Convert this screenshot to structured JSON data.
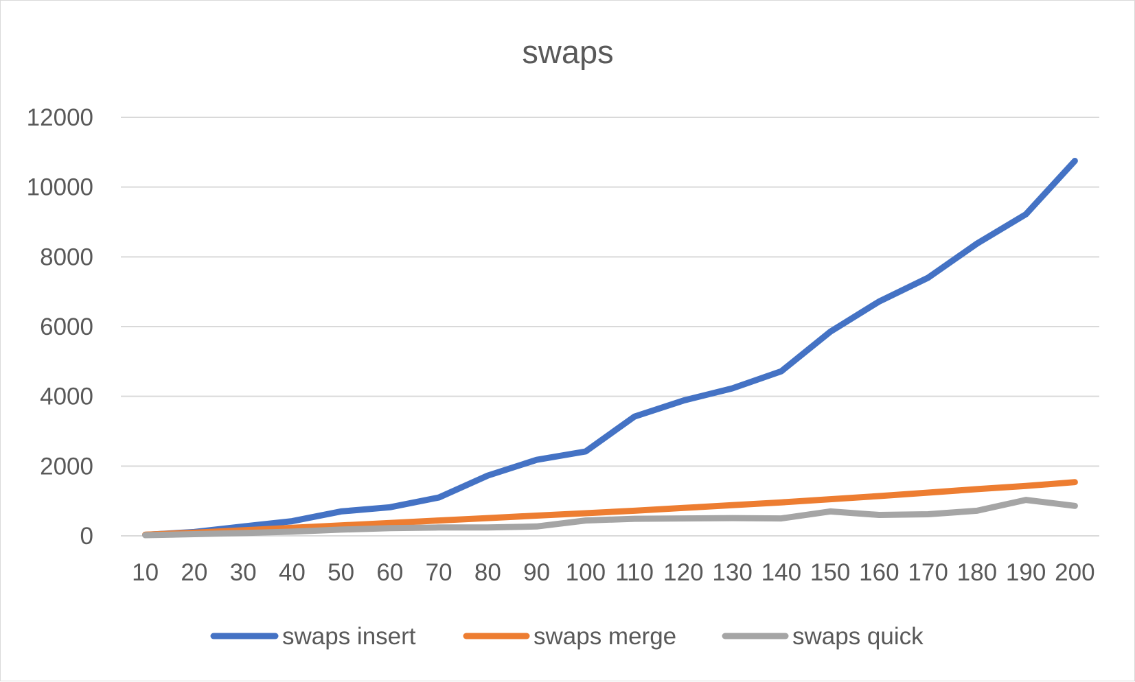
{
  "chart_data": {
    "type": "line",
    "title": "swaps",
    "xlabel": "",
    "ylabel": "",
    "categories": [
      "10",
      "20",
      "30",
      "40",
      "50",
      "60",
      "70",
      "80",
      "90",
      "100",
      "110",
      "120",
      "130",
      "140",
      "150",
      "160",
      "170",
      "180",
      "190",
      "200"
    ],
    "ylim": [
      0,
      12000
    ],
    "yticks": [
      "0",
      "2000",
      "4000",
      "6000",
      "8000",
      "10000",
      "12000"
    ],
    "grid": true,
    "legend_position": "bottom",
    "series": [
      {
        "name": "swaps insert",
        "color": "#4472c4",
        "values": [
          30,
          110,
          270,
          420,
          700,
          820,
          1100,
          1730,
          2180,
          2420,
          3420,
          3880,
          4230,
          4720,
          5850,
          6720,
          7400,
          8380,
          9220,
          10750
        ]
      },
      {
        "name": "swaps merge",
        "color": "#ed7d31",
        "values": [
          35,
          90,
          160,
          230,
          300,
          370,
          440,
          510,
          580,
          650,
          720,
          800,
          880,
          960,
          1050,
          1140,
          1240,
          1340,
          1430,
          1540
        ]
      },
      {
        "name": "swaps quick",
        "color": "#a5a5a5",
        "values": [
          20,
          50,
          80,
          120,
          180,
          220,
          240,
          240,
          270,
          440,
          490,
          500,
          510,
          500,
          700,
          600,
          620,
          720,
          1030,
          860
        ]
      }
    ]
  }
}
